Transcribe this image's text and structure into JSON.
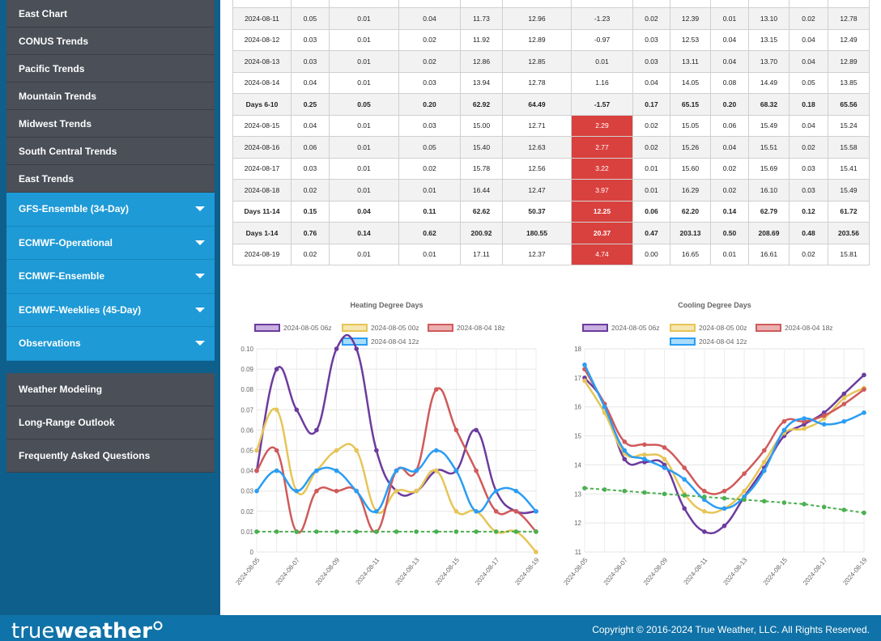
{
  "sidebar": {
    "sub_items": [
      "East Chart",
      "CONUS Trends",
      "Pacific Trends",
      "Mountain Trends",
      "Midwest Trends",
      "South Central Trends",
      "East Trends"
    ],
    "accordions": [
      "GFS-Ensemble (34-Day)",
      "ECMWF-Operational",
      "ECMWF-Ensemble",
      "ECMWF-Weeklies (45-Day)",
      "Observations"
    ],
    "links": [
      "Weather Modeling",
      "Long-Range Outlook",
      "Frequently Asked Questions"
    ]
  },
  "footer": {
    "logo_text_1": "true",
    "logo_text_2": "weather",
    "copyright": "Copyright © 2016-2024 True Weather, LLC. All Rights Reserved."
  },
  "table": {
    "rows": [
      {
        "cells": [
          "",
          "",
          "",
          "",
          "",
          "",
          "",
          "",
          "",
          "",
          "",
          "",
          "",
          ""
        ],
        "agg": false,
        "hot": false,
        "first": true
      },
      {
        "cells": [
          "2024-08-11",
          "0.05",
          "0.01",
          "0.04",
          "11.73",
          "12.96",
          "-1.23",
          "0.02",
          "12.39",
          "0.01",
          "13.10",
          "0.02",
          "12.78"
        ],
        "agg": false,
        "hot": false
      },
      {
        "cells": [
          "2024-08-12",
          "0.03",
          "0.01",
          "0.02",
          "11.92",
          "12.89",
          "-0.97",
          "0.03",
          "12.53",
          "0.04",
          "13.15",
          "0.04",
          "12.49"
        ],
        "agg": false,
        "hot": false
      },
      {
        "cells": [
          "2024-08-13",
          "0.03",
          "0.01",
          "0.02",
          "12.86",
          "12.85",
          "0.01",
          "0.03",
          "13.11",
          "0.04",
          "13.70",
          "0.04",
          "12.89"
        ],
        "agg": false,
        "hot": false
      },
      {
        "cells": [
          "2024-08-14",
          "0.04",
          "0.01",
          "0.03",
          "13.94",
          "12.78",
          "1.16",
          "0.04",
          "14.05",
          "0.08",
          "14.49",
          "0.05",
          "13.85"
        ],
        "agg": false,
        "hot": false
      },
      {
        "cells": [
          "Days 6-10",
          "0.25",
          "0.05",
          "0.20",
          "62.92",
          "64.49",
          "-1.57",
          "0.17",
          "65.15",
          "0.20",
          "68.32",
          "0.18",
          "65.56"
        ],
        "agg": true,
        "hot": false
      },
      {
        "cells": [
          "2024-08-15",
          "0.04",
          "0.01",
          "0.03",
          "15.00",
          "12.71",
          "2.29",
          "0.02",
          "15.05",
          "0.06",
          "15.49",
          "0.04",
          "15.24"
        ],
        "agg": false,
        "hot": true
      },
      {
        "cells": [
          "2024-08-16",
          "0.06",
          "0.01",
          "0.05",
          "15.40",
          "12.63",
          "2.77",
          "0.02",
          "15.26",
          "0.04",
          "15.51",
          "0.02",
          "15.58"
        ],
        "agg": false,
        "hot": true
      },
      {
        "cells": [
          "2024-08-17",
          "0.03",
          "0.01",
          "0.02",
          "15.78",
          "12.56",
          "3.22",
          "0.01",
          "15.60",
          "0.02",
          "15.69",
          "0.03",
          "15.41"
        ],
        "agg": false,
        "hot": true
      },
      {
        "cells": [
          "2024-08-18",
          "0.02",
          "0.01",
          "0.01",
          "16.44",
          "12.47",
          "3.97",
          "0.01",
          "16.29",
          "0.02",
          "16.10",
          "0.03",
          "15.49"
        ],
        "agg": false,
        "hot": true
      },
      {
        "cells": [
          "Days 11-14",
          "0.15",
          "0.04",
          "0.11",
          "62.62",
          "50.37",
          "12.25",
          "0.06",
          "62.20",
          "0.14",
          "62.79",
          "0.12",
          "61.72"
        ],
        "agg": true,
        "hot": true
      },
      {
        "cells": [
          "Days 1-14",
          "0.76",
          "0.14",
          "0.62",
          "200.92",
          "180.55",
          "20.37",
          "0.47",
          "203.13",
          "0.50",
          "208.69",
          "0.48",
          "203.56"
        ],
        "agg": true,
        "hot": true
      },
      {
        "cells": [
          "2024-08-19",
          "0.02",
          "0.01",
          "0.01",
          "17.11",
          "12.37",
          "4.74",
          "0.00",
          "16.65",
          "0.01",
          "16.61",
          "0.02",
          "15.81"
        ],
        "agg": false,
        "hot": true
      }
    ]
  },
  "chart_data": [
    {
      "type": "line",
      "title": "Heating Degree Days",
      "x": [
        "2024-08-05",
        "2024-08-06",
        "2024-08-07",
        "2024-08-08",
        "2024-08-09",
        "2024-08-10",
        "2024-08-11",
        "2024-08-12",
        "2024-08-13",
        "2024-08-14",
        "2024-08-15",
        "2024-08-16",
        "2024-08-17",
        "2024-08-18",
        "2024-08-19"
      ],
      "xticks": [
        "2024-08-05",
        "2024-08-07",
        "2024-08-09",
        "2024-08-11",
        "2024-08-13",
        "2024-08-15",
        "2024-08-17",
        "2024-08-19"
      ],
      "ylim": [
        0,
        0.1
      ],
      "yticks": [
        "0",
        "0.01",
        "0.02",
        "0.03",
        "0.04",
        "0.05",
        "0.06",
        "0.07",
        "0.08",
        "0.09",
        "0.10"
      ],
      "legend_position": "top",
      "series": [
        {
          "name": "2024-08-05 06z",
          "color": "#6c3b9e",
          "fill": "#c9b0e0",
          "dashed": false,
          "values": [
            0.04,
            0.09,
            0.07,
            0.06,
            0.1,
            0.1,
            0.05,
            0.03,
            0.03,
            0.04,
            0.04,
            0.06,
            0.03,
            0.02,
            0.02
          ]
        },
        {
          "name": "2024-08-05 00z",
          "color": "#e6c557",
          "fill": "#f5e5ae",
          "dashed": false,
          "values": [
            0.05,
            0.07,
            0.03,
            0.04,
            0.05,
            0.05,
            0.02,
            0.03,
            0.03,
            0.04,
            0.02,
            0.02,
            0.01,
            0.01,
            0.0
          ]
        },
        {
          "name": "2024-08-04 18z",
          "color": "#d05a5a",
          "fill": "#eab0b0",
          "dashed": false,
          "values": [
            0.04,
            0.05,
            0.01,
            0.03,
            0.03,
            0.03,
            0.01,
            0.04,
            0.04,
            0.08,
            0.06,
            0.04,
            0.02,
            0.02,
            0.01
          ]
        },
        {
          "name": "2024-08-04 12z",
          "color": "#2a9df4",
          "fill": "#a9dcfb",
          "dashed": false,
          "values": [
            0.03,
            0.04,
            0.03,
            0.04,
            0.04,
            0.03,
            0.02,
            0.04,
            0.04,
            0.05,
            0.04,
            0.02,
            0.03,
            0.03,
            0.02
          ]
        },
        {
          "name": "",
          "color": "#4caf50",
          "fill": "#4caf50",
          "dashed": true,
          "values": [
            0.01,
            0.01,
            0.01,
            0.01,
            0.01,
            0.01,
            0.01,
            0.01,
            0.01,
            0.01,
            0.01,
            0.01,
            0.01,
            0.01,
            0.01
          ]
        }
      ]
    },
    {
      "type": "line",
      "title": "Cooling Degree Days",
      "x": [
        "2024-08-05",
        "2024-08-06",
        "2024-08-07",
        "2024-08-08",
        "2024-08-09",
        "2024-08-10",
        "2024-08-11",
        "2024-08-12",
        "2024-08-13",
        "2024-08-14",
        "2024-08-15",
        "2024-08-16",
        "2024-08-17",
        "2024-08-18",
        "2024-08-19"
      ],
      "xticks": [
        "2024-08-05",
        "2024-08-07",
        "2024-08-09",
        "2024-08-11",
        "2024-08-13",
        "2024-08-15",
        "2024-08-17",
        "2024-08-19"
      ],
      "ylim": [
        11,
        18
      ],
      "yticks": [
        "11",
        "12",
        "13",
        "14",
        "15",
        "16",
        "17",
        "18"
      ],
      "legend_position": "top",
      "series": [
        {
          "name": "2024-08-05 06z",
          "color": "#6c3b9e",
          "fill": "#c9b0e0",
          "dashed": false,
          "values": [
            17.0,
            16.1,
            14.2,
            14.1,
            14.0,
            12.5,
            11.7,
            11.9,
            12.9,
            13.9,
            15.0,
            15.4,
            15.8,
            16.45,
            17.1
          ]
        },
        {
          "name": "2024-08-05 00z",
          "color": "#e6c557",
          "fill": "#f5e5ae",
          "dashed": false,
          "values": [
            16.9,
            15.8,
            14.4,
            14.35,
            14.2,
            13.0,
            12.4,
            12.5,
            13.1,
            14.1,
            15.1,
            15.25,
            15.6,
            16.3,
            16.65
          ]
        },
        {
          "name": "2024-08-04 18z",
          "color": "#d05a5a",
          "fill": "#eab0b0",
          "dashed": false,
          "values": [
            17.3,
            16.1,
            14.8,
            14.7,
            14.6,
            13.9,
            13.1,
            13.1,
            13.7,
            14.5,
            15.5,
            15.5,
            15.7,
            16.1,
            16.6
          ]
        },
        {
          "name": "2024-08-04 12z",
          "color": "#2a9df4",
          "fill": "#a9dcfb",
          "dashed": false,
          "values": [
            17.45,
            16.0,
            14.5,
            14.2,
            13.9,
            13.5,
            12.8,
            12.5,
            12.9,
            13.8,
            15.2,
            15.6,
            15.4,
            15.5,
            15.8
          ]
        },
        {
          "name": "",
          "color": "#4caf50",
          "fill": "#4caf50",
          "dashed": true,
          "values": [
            13.2,
            13.15,
            13.1,
            13.05,
            13.0,
            12.95,
            12.9,
            12.85,
            12.8,
            12.75,
            12.7,
            12.65,
            12.55,
            12.45,
            12.35
          ]
        }
      ]
    }
  ]
}
